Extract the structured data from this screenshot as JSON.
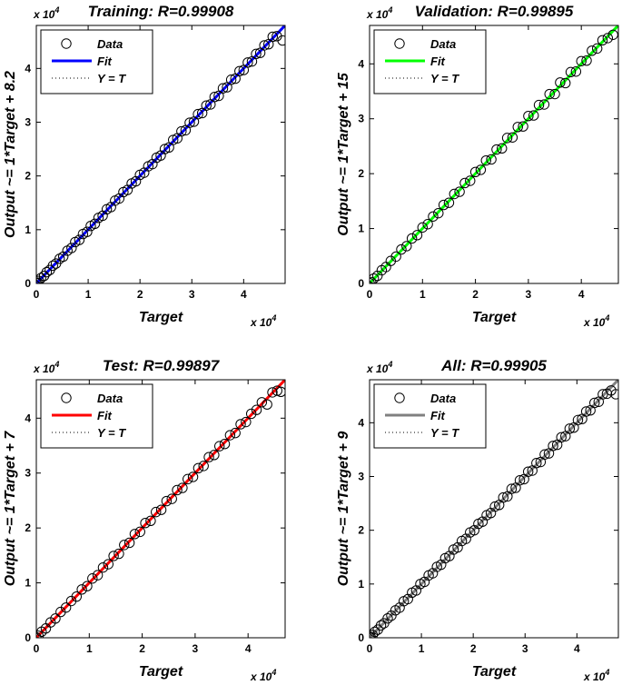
{
  "chart_data": [
    {
      "type": "scatter",
      "title": "Training: R=0.99908",
      "xlabel": "Target",
      "ylabel": "Output ~= 1*Target + 8.2",
      "xlim": [
        0,
        48000
      ],
      "ylim": [
        0,
        48000
      ],
      "xticks": [
        0,
        10000,
        20000,
        30000,
        40000
      ],
      "yticks": [
        0,
        10000,
        20000,
        30000,
        40000
      ],
      "xtick_labels": [
        "0",
        "1",
        "2",
        "3",
        "4"
      ],
      "ytick_labels": [
        "0",
        "1",
        "2",
        "3",
        "4"
      ],
      "x_scale_label": "x 10",
      "y_scale_label": "x 10",
      "scale_exponent": "4",
      "fit": {
        "slope": 1,
        "intercept": 8.2,
        "color": "#0000ff"
      },
      "grid": false,
      "legend_position": "top-left",
      "legend": [
        "Data",
        "Fit",
        "Y = T"
      ],
      "points": [
        [
          0,
          60
        ],
        [
          200,
          150
        ],
        [
          500,
          480
        ],
        [
          900,
          1000
        ],
        [
          1500,
          1400
        ],
        [
          2000,
          2100
        ],
        [
          2600,
          2500
        ],
        [
          3200,
          3300
        ],
        [
          3800,
          3700
        ],
        [
          4500,
          4600
        ],
        [
          5200,
          5000
        ],
        [
          6000,
          6100
        ],
        [
          6800,
          6600
        ],
        [
          7500,
          7700
        ],
        [
          8300,
          8100
        ],
        [
          9000,
          9200
        ],
        [
          9800,
          9600
        ],
        [
          10500,
          10700
        ],
        [
          11300,
          11100
        ],
        [
          12000,
          12200
        ],
        [
          12800,
          12600
        ],
        [
          13600,
          13800
        ],
        [
          14400,
          14200
        ],
        [
          15200,
          15400
        ],
        [
          16000,
          15800
        ],
        [
          16800,
          17000
        ],
        [
          17600,
          17400
        ],
        [
          18400,
          18600
        ],
        [
          19200,
          19000
        ],
        [
          20000,
          20200
        ],
        [
          20800,
          20600
        ],
        [
          21600,
          21800
        ],
        [
          22400,
          22200
        ],
        [
          23200,
          23400
        ],
        [
          24000,
          23800
        ],
        [
          24800,
          25000
        ],
        [
          25600,
          25300
        ],
        [
          26400,
          26700
        ],
        [
          27200,
          27000
        ],
        [
          28000,
          28300
        ],
        [
          28800,
          28500
        ],
        [
          29600,
          29900
        ],
        [
          30400,
          30100
        ],
        [
          31200,
          31500
        ],
        [
          32000,
          31700
        ],
        [
          32800,
          33100
        ],
        [
          33600,
          33300
        ],
        [
          34400,
          34700
        ],
        [
          35200,
          34900
        ],
        [
          36000,
          36300
        ],
        [
          36800,
          36500
        ],
        [
          37600,
          37900
        ],
        [
          38400,
          38100
        ],
        [
          39200,
          39500
        ],
        [
          40000,
          39700
        ],
        [
          40800,
          41100
        ],
        [
          41600,
          41300
        ],
        [
          42400,
          42700
        ],
        [
          43200,
          42900
        ],
        [
          44000,
          44300
        ],
        [
          44800,
          44500
        ],
        [
          45600,
          45900
        ],
        [
          46400,
          46000
        ],
        [
          47500,
          45200
        ]
      ]
    },
    {
      "type": "scatter",
      "title": "Validation: R=0.99895",
      "xlabel": "Target",
      "ylabel": "Output ~= 1*Target + 15",
      "xlim": [
        0,
        47000
      ],
      "ylim": [
        0,
        47000
      ],
      "xticks": [
        0,
        10000,
        20000,
        30000,
        40000
      ],
      "yticks": [
        0,
        10000,
        20000,
        30000,
        40000
      ],
      "xtick_labels": [
        "0",
        "1",
        "2",
        "3",
        "4"
      ],
      "ytick_labels": [
        "0",
        "1",
        "2",
        "3",
        "4"
      ],
      "x_scale_label": "x 10",
      "y_scale_label": "x 10",
      "scale_exponent": "4",
      "fit": {
        "slope": 1,
        "intercept": 15,
        "color": "#00ff00"
      },
      "grid": false,
      "legend_position": "top-left",
      "legend": [
        "Data",
        "Fit",
        "Y = T"
      ],
      "points": [
        [
          0,
          80
        ],
        [
          300,
          250
        ],
        [
          800,
          900
        ],
        [
          1500,
          1400
        ],
        [
          2300,
          2400
        ],
        [
          3100,
          3000
        ],
        [
          4000,
          4100
        ],
        [
          5000,
          4900
        ],
        [
          6000,
          6200
        ],
        [
          7000,
          6800
        ],
        [
          8000,
          8200
        ],
        [
          9000,
          8800
        ],
        [
          10000,
          10200
        ],
        [
          11000,
          10800
        ],
        [
          12000,
          12200
        ],
        [
          13000,
          12800
        ],
        [
          14000,
          14300
        ],
        [
          15000,
          14700
        ],
        [
          16000,
          16300
        ],
        [
          17000,
          16700
        ],
        [
          18000,
          18300
        ],
        [
          19000,
          18700
        ],
        [
          20000,
          20300
        ],
        [
          21000,
          20700
        ],
        [
          22000,
          22400
        ],
        [
          23000,
          22600
        ],
        [
          24000,
          24400
        ],
        [
          25000,
          24600
        ],
        [
          26000,
          26500
        ],
        [
          27000,
          26600
        ],
        [
          28000,
          28500
        ],
        [
          29000,
          28600
        ],
        [
          30000,
          30500
        ],
        [
          31000,
          30600
        ],
        [
          32000,
          32500
        ],
        [
          33000,
          32600
        ],
        [
          34000,
          34500
        ],
        [
          35000,
          34500
        ],
        [
          36000,
          36600
        ],
        [
          37000,
          36500
        ],
        [
          38000,
          38500
        ],
        [
          39000,
          38600
        ],
        [
          40000,
          40500
        ],
        [
          41000,
          40600
        ],
        [
          42000,
          42400
        ],
        [
          43000,
          42800
        ],
        [
          44000,
          44300
        ],
        [
          45000,
          44700
        ],
        [
          46000,
          45300
        ]
      ]
    },
    {
      "type": "scatter",
      "title": "Test: R=0.99897",
      "xlabel": "Target",
      "ylabel": "Output ~= 1*Target + 7",
      "xlim": [
        0,
        47000
      ],
      "ylim": [
        0,
        47000
      ],
      "xticks": [
        0,
        10000,
        20000,
        30000,
        40000
      ],
      "yticks": [
        0,
        10000,
        20000,
        30000,
        40000
      ],
      "xtick_labels": [
        "0",
        "1",
        "2",
        "3",
        "4"
      ],
      "ytick_labels": [
        "0",
        "1",
        "2",
        "3",
        "4"
      ],
      "x_scale_label": "x 10",
      "y_scale_label": "x 10",
      "scale_exponent": "4",
      "fit": {
        "slope": 1,
        "intercept": 7,
        "color": "#ff0000"
      },
      "grid": false,
      "legend_position": "top-left",
      "legend": [
        "Data",
        "Fit",
        "Y = T"
      ],
      "points": [
        [
          0,
          60
        ],
        [
          400,
          350
        ],
        [
          1000,
          1100
        ],
        [
          1800,
          1700
        ],
        [
          2700,
          2800
        ],
        [
          3600,
          3500
        ],
        [
          4600,
          4700
        ],
        [
          5600,
          5500
        ],
        [
          6600,
          6700
        ],
        [
          7600,
          7500
        ],
        [
          8600,
          8800
        ],
        [
          9600,
          9400
        ],
        [
          10600,
          10800
        ],
        [
          11600,
          11400
        ],
        [
          12600,
          12800
        ],
        [
          13600,
          13400
        ],
        [
          14600,
          14900
        ],
        [
          15600,
          15300
        ],
        [
          16600,
          16900
        ],
        [
          17600,
          17300
        ],
        [
          18600,
          18900
        ],
        [
          19600,
          19300
        ],
        [
          20600,
          20900
        ],
        [
          21600,
          21300
        ],
        [
          22600,
          22900
        ],
        [
          23600,
          23300
        ],
        [
          24600,
          24900
        ],
        [
          25600,
          25300
        ],
        [
          26600,
          26900
        ],
        [
          27600,
          27300
        ],
        [
          28600,
          28900
        ],
        [
          29600,
          29300
        ],
        [
          30600,
          30900
        ],
        [
          31600,
          31300
        ],
        [
          32600,
          32900
        ],
        [
          33600,
          33300
        ],
        [
          34600,
          34900
        ],
        [
          35600,
          35300
        ],
        [
          36600,
          36900
        ],
        [
          37600,
          37300
        ],
        [
          38600,
          38900
        ],
        [
          39600,
          39300
        ],
        [
          40600,
          40800
        ],
        [
          41600,
          41500
        ],
        [
          42600,
          42900
        ],
        [
          43600,
          42500
        ],
        [
          44600,
          44700
        ],
        [
          45500,
          45000
        ],
        [
          46200,
          44800
        ]
      ]
    },
    {
      "type": "scatter",
      "title": "All: R=0.99905",
      "xlabel": "Target",
      "ylabel": "Output ~= 1*Target + 9",
      "xlim": [
        0,
        48000
      ],
      "ylim": [
        0,
        48000
      ],
      "xticks": [
        0,
        10000,
        20000,
        30000,
        40000
      ],
      "yticks": [
        0,
        10000,
        20000,
        30000,
        40000
      ],
      "xtick_labels": [
        "0",
        "1",
        "2",
        "3",
        "4"
      ],
      "ytick_labels": [
        "0",
        "1",
        "2",
        "3",
        "4"
      ],
      "x_scale_label": "x 10",
      "y_scale_label": "x 10",
      "scale_exponent": "4",
      "fit": {
        "slope": 1,
        "intercept": 9,
        "color": "#808080"
      },
      "grid": false,
      "legend_position": "top-left",
      "legend": [
        "Data",
        "Fit",
        "Y = T"
      ],
      "points": [
        [
          0,
          70
        ],
        [
          200,
          160
        ],
        [
          600,
          520
        ],
        [
          1000,
          1100
        ],
        [
          1600,
          1500
        ],
        [
          2200,
          2300
        ],
        [
          2800,
          2700
        ],
        [
          3500,
          3600
        ],
        [
          4200,
          4100
        ],
        [
          5000,
          5100
        ],
        [
          5800,
          5600
        ],
        [
          6600,
          6800
        ],
        [
          7400,
          7200
        ],
        [
          8200,
          8400
        ],
        [
          9000,
          8800
        ],
        [
          9800,
          10000
        ],
        [
          10600,
          10400
        ],
        [
          11400,
          11600
        ],
        [
          12200,
          12000
        ],
        [
          13000,
          13200
        ],
        [
          13800,
          13600
        ],
        [
          14600,
          14800
        ],
        [
          15400,
          15200
        ],
        [
          16200,
          16400
        ],
        [
          17000,
          16800
        ],
        [
          17800,
          18000
        ],
        [
          18600,
          18400
        ],
        [
          19400,
          19600
        ],
        [
          20200,
          20000
        ],
        [
          21000,
          21200
        ],
        [
          21800,
          21600
        ],
        [
          22600,
          22800
        ],
        [
          23400,
          23200
        ],
        [
          24200,
          24400
        ],
        [
          25000,
          24700
        ],
        [
          25800,
          26100
        ],
        [
          26600,
          26300
        ],
        [
          27400,
          27700
        ],
        [
          28200,
          27900
        ],
        [
          29000,
          29300
        ],
        [
          29800,
          29500
        ],
        [
          30600,
          30900
        ],
        [
          31400,
          31100
        ],
        [
          32200,
          32500
        ],
        [
          33000,
          32700
        ],
        [
          33800,
          34100
        ],
        [
          34600,
          34300
        ],
        [
          35400,
          35700
        ],
        [
          36200,
          35900
        ],
        [
          37000,
          37300
        ],
        [
          37800,
          37500
        ],
        [
          38600,
          38900
        ],
        [
          39400,
          39100
        ],
        [
          40200,
          40500
        ],
        [
          41000,
          40700
        ],
        [
          41800,
          42100
        ],
        [
          42600,
          42300
        ],
        [
          43400,
          43700
        ],
        [
          44200,
          43900
        ],
        [
          45000,
          45300
        ],
        [
          45800,
          45400
        ],
        [
          46600,
          46000
        ],
        [
          47500,
          45300
        ]
      ]
    }
  ]
}
